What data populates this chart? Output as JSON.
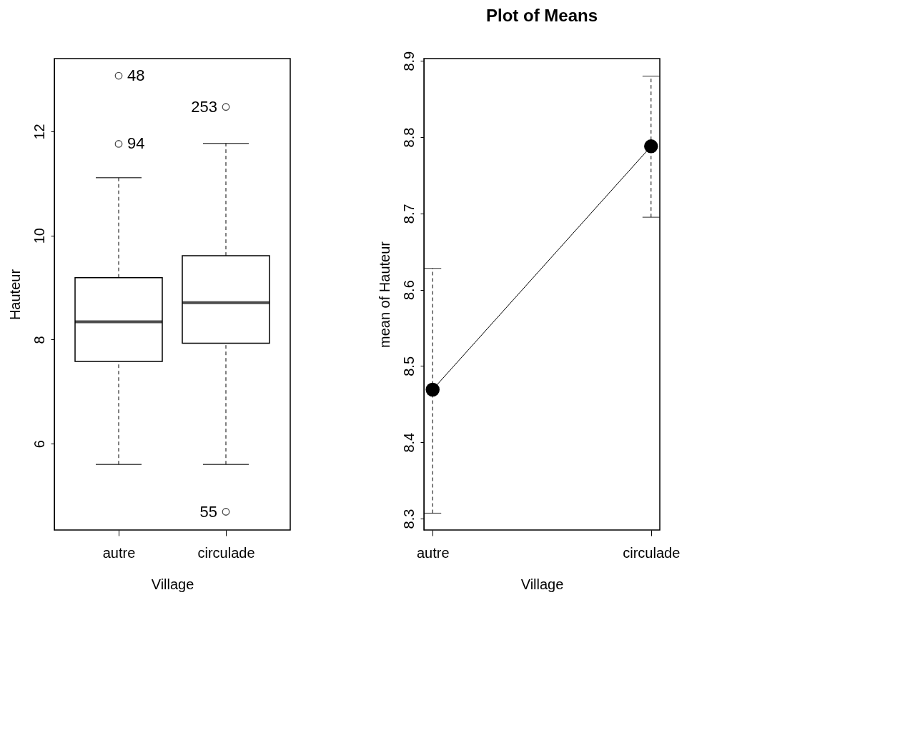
{
  "chart_data": [
    {
      "type": "box",
      "xlabel": "Village",
      "ylabel": "Hauteur",
      "categories": [
        "autre",
        "circulade"
      ],
      "boxes": [
        {
          "low": 5.6,
          "q1": 7.58,
          "median": 8.34,
          "q3": 9.19,
          "high": 11.11,
          "outliers": [
            13.07,
            11.76
          ]
        },
        {
          "low": 5.6,
          "q1": 7.93,
          "median": 8.71,
          "q3": 9.61,
          "high": 11.77,
          "outliers": [
            12.47,
            4.69
          ]
        }
      ],
      "ylim": [
        4.34,
        13.4
      ],
      "yticks": [
        6,
        8,
        10,
        12
      ],
      "grid": false,
      "annotations": [
        "48",
        "94",
        "253",
        "55"
      ]
    },
    {
      "type": "line",
      "title": "Plot of Means",
      "xlabel": "Village",
      "ylabel": "mean of Hauteur",
      "categories": [
        "autre",
        "circulade"
      ],
      "series": [
        {
          "color": "#000000",
          "values": [
            8.469,
            8.788
          ],
          "errors": [
            [
              8.307,
              8.628
            ],
            [
              8.695,
              8.88
            ]
          ]
        }
      ],
      "ylim": [
        8.285,
        8.903
      ],
      "yticks": [
        8.3,
        8.4,
        8.5,
        8.6,
        8.7,
        8.8,
        8.9
      ],
      "grid": false,
      "marker": "circle",
      "line_style": "solid"
    }
  ]
}
